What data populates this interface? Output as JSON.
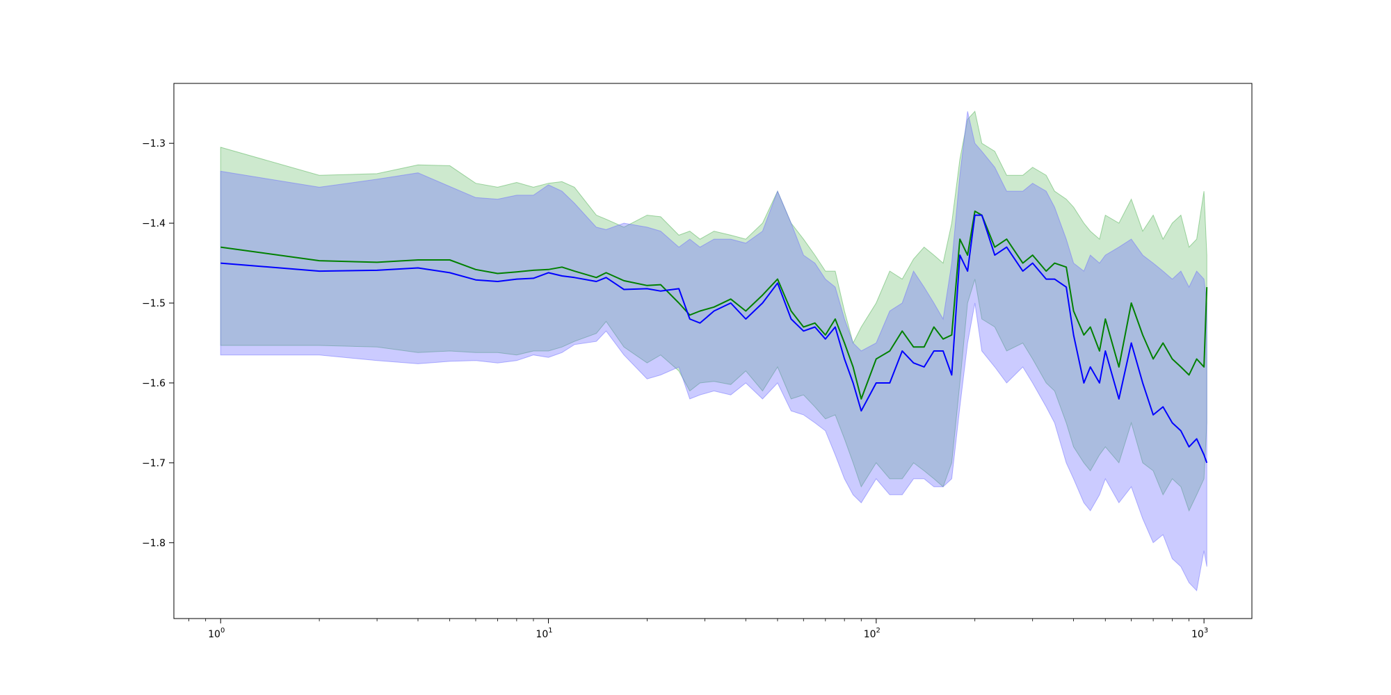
{
  "chart_data": {
    "type": "line",
    "title": "",
    "xlabel": "",
    "ylabel": "",
    "x_scale": "log",
    "xlim": [
      0.72,
      1400
    ],
    "ylim": [
      -1.895,
      -1.225
    ],
    "grid": false,
    "legend": "none",
    "x_ticks": [
      {
        "value": 1,
        "label": "10",
        "exp": "0"
      },
      {
        "value": 10,
        "label": "10",
        "exp": "1"
      },
      {
        "value": 100,
        "label": "10",
        "exp": "2"
      },
      {
        "value": 1000,
        "label": "10",
        "exp": "3"
      }
    ],
    "y_ticks": [
      {
        "value": -1.3,
        "label": "−1.3"
      },
      {
        "value": -1.4,
        "label": "−1.4"
      },
      {
        "value": -1.5,
        "label": "−1.5"
      },
      {
        "value": -1.6,
        "label": "−1.6"
      },
      {
        "value": -1.7,
        "label": "−1.7"
      },
      {
        "value": -1.8,
        "label": "−1.8"
      }
    ],
    "series": [
      {
        "color": "#008000",
        "band_color": "#4caf50",
        "band_opacity": 0.28,
        "x": [
          1,
          2,
          3,
          4,
          5,
          6,
          7,
          8,
          9,
          10,
          11,
          12,
          14,
          15,
          17,
          20,
          22,
          25,
          27,
          29,
          32,
          36,
          40,
          45,
          50,
          55,
          60,
          65,
          70,
          75,
          80,
          85,
          90,
          100,
          110,
          120,
          130,
          140,
          150,
          160,
          170,
          180,
          190,
          200,
          210,
          230,
          250,
          280,
          300,
          330,
          350,
          380,
          400,
          430,
          450,
          480,
          500,
          550,
          600,
          650,
          700,
          750,
          800,
          850,
          900,
          950,
          1000,
          1020
        ],
        "y": [
          -1.43,
          -1.447,
          -1.449,
          -1.446,
          -1.446,
          -1.458,
          -1.463,
          -1.461,
          -1.459,
          -1.458,
          -1.455,
          -1.46,
          -1.468,
          -1.462,
          -1.472,
          -1.478,
          -1.477,
          -1.5,
          -1.515,
          -1.51,
          -1.505,
          -1.495,
          -1.51,
          -1.49,
          -1.47,
          -1.51,
          -1.53,
          -1.525,
          -1.54,
          -1.52,
          -1.55,
          -1.58,
          -1.62,
          -1.57,
          -1.56,
          -1.535,
          -1.555,
          -1.555,
          -1.53,
          -1.545,
          -1.54,
          -1.42,
          -1.44,
          -1.385,
          -1.39,
          -1.43,
          -1.42,
          -1.45,
          -1.44,
          -1.46,
          -1.45,
          -1.455,
          -1.51,
          -1.54,
          -1.53,
          -1.56,
          -1.52,
          -1.58,
          -1.5,
          -1.54,
          -1.57,
          -1.55,
          -1.57,
          -1.58,
          -1.59,
          -1.57,
          -1.58,
          -1.48
        ],
        "upper": [
          -1.305,
          -1.34,
          -1.338,
          -1.327,
          -1.328,
          -1.35,
          -1.355,
          -1.349,
          -1.355,
          -1.35,
          -1.348,
          -1.355,
          -1.39,
          -1.395,
          -1.405,
          -1.39,
          -1.392,
          -1.415,
          -1.41,
          -1.42,
          -1.41,
          -1.415,
          -1.42,
          -1.4,
          -1.36,
          -1.4,
          -1.42,
          -1.44,
          -1.46,
          -1.46,
          -1.51,
          -1.55,
          -1.53,
          -1.5,
          -1.46,
          -1.47,
          -1.445,
          -1.43,
          -1.44,
          -1.45,
          -1.4,
          -1.32,
          -1.27,
          -1.26,
          -1.3,
          -1.31,
          -1.34,
          -1.34,
          -1.33,
          -1.34,
          -1.36,
          -1.37,
          -1.38,
          -1.4,
          -1.41,
          -1.42,
          -1.39,
          -1.4,
          -1.37,
          -1.41,
          -1.39,
          -1.42,
          -1.4,
          -1.39,
          -1.43,
          -1.42,
          -1.36,
          -1.44
        ],
        "lower": [
          -1.553,
          -1.553,
          -1.555,
          -1.562,
          -1.56,
          -1.562,
          -1.562,
          -1.565,
          -1.56,
          -1.56,
          -1.555,
          -1.548,
          -1.538,
          -1.523,
          -1.555,
          -1.575,
          -1.565,
          -1.585,
          -1.61,
          -1.6,
          -1.598,
          -1.602,
          -1.585,
          -1.61,
          -1.58,
          -1.62,
          -1.615,
          -1.63,
          -1.645,
          -1.64,
          -1.67,
          -1.7,
          -1.73,
          -1.7,
          -1.72,
          -1.72,
          -1.7,
          -1.71,
          -1.72,
          -1.73,
          -1.7,
          -1.6,
          -1.5,
          -1.47,
          -1.52,
          -1.53,
          -1.56,
          -1.55,
          -1.57,
          -1.6,
          -1.61,
          -1.65,
          -1.68,
          -1.7,
          -1.71,
          -1.69,
          -1.68,
          -1.7,
          -1.65,
          -1.7,
          -1.71,
          -1.74,
          -1.72,
          -1.73,
          -1.76,
          -1.74,
          -1.72,
          -1.65
        ]
      },
      {
        "color": "#0000ff",
        "band_color": "#6b6bff",
        "band_opacity": 0.35,
        "x": [
          1,
          2,
          3,
          4,
          5,
          6,
          7,
          8,
          9,
          10,
          11,
          12,
          14,
          15,
          17,
          20,
          22,
          25,
          27,
          29,
          32,
          36,
          40,
          45,
          50,
          55,
          60,
          65,
          70,
          75,
          80,
          85,
          90,
          100,
          110,
          120,
          130,
          140,
          150,
          160,
          170,
          180,
          190,
          200,
          210,
          230,
          250,
          280,
          300,
          330,
          350,
          380,
          400,
          430,
          450,
          480,
          500,
          550,
          600,
          650,
          700,
          750,
          800,
          850,
          900,
          950,
          1000,
          1020
        ],
        "y": [
          -1.45,
          -1.46,
          -1.459,
          -1.456,
          -1.462,
          -1.471,
          -1.473,
          -1.47,
          -1.469,
          -1.462,
          -1.466,
          -1.468,
          -1.473,
          -1.468,
          -1.483,
          -1.482,
          -1.485,
          -1.482,
          -1.52,
          -1.525,
          -1.51,
          -1.5,
          -1.52,
          -1.5,
          -1.475,
          -1.52,
          -1.535,
          -1.53,
          -1.545,
          -1.53,
          -1.57,
          -1.6,
          -1.635,
          -1.6,
          -1.6,
          -1.56,
          -1.575,
          -1.58,
          -1.56,
          -1.56,
          -1.59,
          -1.44,
          -1.46,
          -1.39,
          -1.39,
          -1.44,
          -1.43,
          -1.46,
          -1.45,
          -1.47,
          -1.47,
          -1.48,
          -1.54,
          -1.6,
          -1.58,
          -1.6,
          -1.56,
          -1.62,
          -1.55,
          -1.6,
          -1.64,
          -1.63,
          -1.65,
          -1.66,
          -1.68,
          -1.67,
          -1.69,
          -1.7
        ],
        "upper": [
          -1.335,
          -1.355,
          -1.345,
          -1.337,
          -1.354,
          -1.368,
          -1.37,
          -1.365,
          -1.365,
          -1.352,
          -1.36,
          -1.375,
          -1.405,
          -1.408,
          -1.4,
          -1.405,
          -1.41,
          -1.43,
          -1.42,
          -1.43,
          -1.42,
          -1.42,
          -1.425,
          -1.41,
          -1.36,
          -1.4,
          -1.44,
          -1.45,
          -1.47,
          -1.48,
          -1.52,
          -1.55,
          -1.56,
          -1.55,
          -1.51,
          -1.5,
          -1.46,
          -1.48,
          -1.5,
          -1.52,
          -1.45,
          -1.34,
          -1.26,
          -1.3,
          -1.31,
          -1.33,
          -1.36,
          -1.36,
          -1.35,
          -1.36,
          -1.38,
          -1.42,
          -1.45,
          -1.46,
          -1.44,
          -1.45,
          -1.44,
          -1.43,
          -1.42,
          -1.44,
          -1.45,
          -1.46,
          -1.47,
          -1.46,
          -1.48,
          -1.46,
          -1.47,
          -1.5
        ],
        "lower": [
          -1.565,
          -1.565,
          -1.572,
          -1.576,
          -1.573,
          -1.572,
          -1.575,
          -1.572,
          -1.565,
          -1.568,
          -1.562,
          -1.552,
          -1.548,
          -1.535,
          -1.565,
          -1.595,
          -1.59,
          -1.58,
          -1.62,
          -1.615,
          -1.61,
          -1.615,
          -1.6,
          -1.62,
          -1.6,
          -1.635,
          -1.64,
          -1.65,
          -1.66,
          -1.69,
          -1.72,
          -1.74,
          -1.75,
          -1.72,
          -1.74,
          -1.74,
          -1.72,
          -1.72,
          -1.73,
          -1.73,
          -1.72,
          -1.63,
          -1.55,
          -1.5,
          -1.56,
          -1.58,
          -1.6,
          -1.58,
          -1.6,
          -1.63,
          -1.65,
          -1.7,
          -1.72,
          -1.75,
          -1.76,
          -1.74,
          -1.72,
          -1.75,
          -1.73,
          -1.77,
          -1.8,
          -1.79,
          -1.82,
          -1.83,
          -1.85,
          -1.86,
          -1.81,
          -1.83
        ]
      }
    ]
  }
}
